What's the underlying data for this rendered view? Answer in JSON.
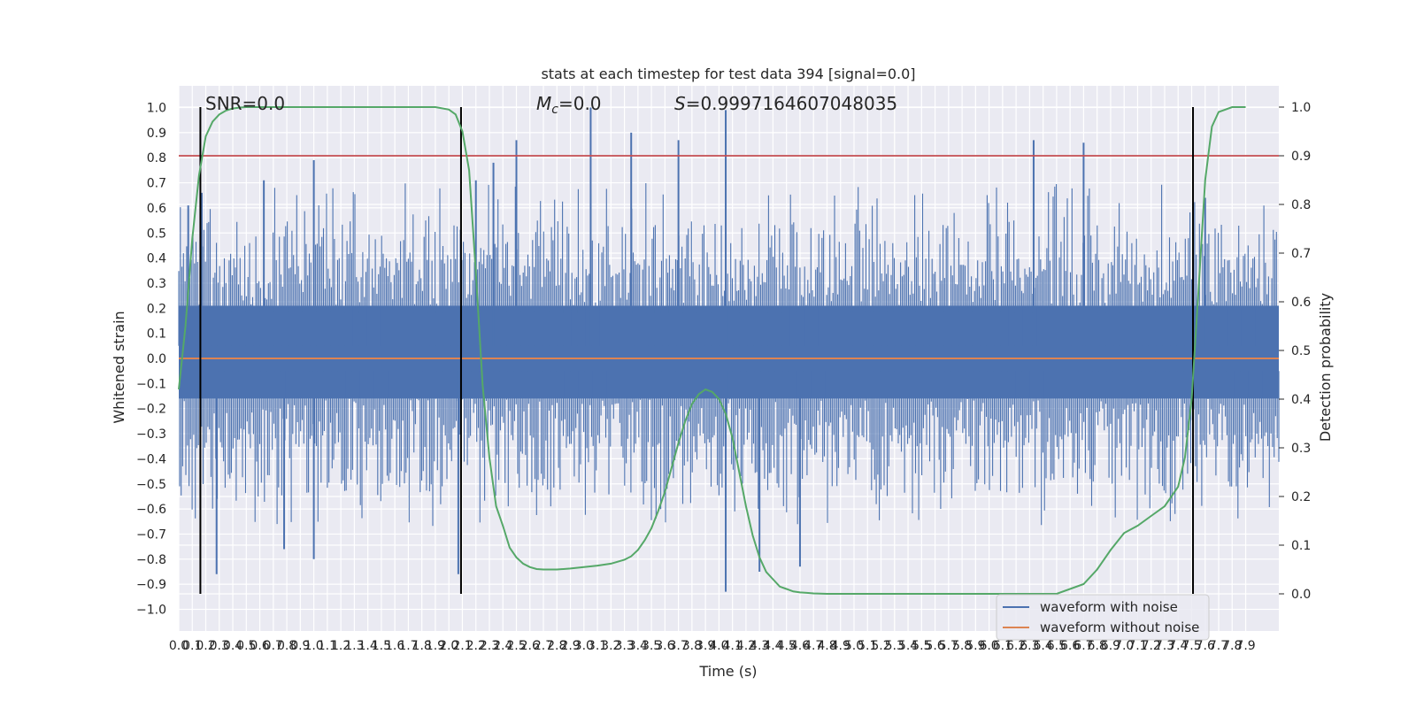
{
  "chart_data": {
    "type": "line",
    "title": "stats at each timestep for test data 394 [signal=0.0]",
    "xlabel": "Time (s)",
    "ylabel": "Whitened strain",
    "y2label": "Detection probability",
    "xlim": [
      0.0,
      7.95
    ],
    "ylim": [
      -1.05,
      1.05
    ],
    "y2lim": [
      -0.05,
      1.05
    ],
    "x_ticks": [
      0.0,
      0.1,
      0.2,
      0.3,
      0.4,
      0.5,
      0.6,
      0.7,
      0.8,
      0.9,
      1.0,
      1.1,
      1.2,
      1.3,
      1.4,
      1.5,
      1.6,
      1.7,
      1.8,
      1.9,
      2.0,
      2.1,
      2.2,
      2.3,
      2.4,
      2.5,
      2.6,
      2.7,
      2.8,
      2.9,
      3.0,
      3.1,
      3.2,
      3.3,
      3.4,
      3.5,
      3.6,
      3.7,
      3.8,
      3.9,
      4.0,
      4.1,
      4.2,
      4.3,
      4.4,
      4.5,
      4.6,
      4.7,
      4.8,
      4.9,
      5.0,
      5.1,
      5.2,
      5.3,
      5.4,
      5.5,
      5.6,
      5.7,
      5.8,
      5.9,
      6.0,
      6.1,
      6.2,
      6.3,
      6.4,
      6.5,
      6.6,
      6.7,
      6.8,
      6.9,
      7.0,
      7.1,
      7.2,
      7.3,
      7.4,
      7.5,
      7.6,
      7.7,
      7.8,
      7.9
    ],
    "y_ticks": [
      -1.0,
      -0.9,
      -0.8,
      -0.7,
      -0.6,
      -0.5,
      -0.4,
      -0.3,
      -0.2,
      -0.1,
      0.0,
      0.1,
      0.2,
      0.3,
      0.4,
      0.5,
      0.6,
      0.7,
      0.8,
      0.9,
      1.0
    ],
    "y2_ticks": [
      0.0,
      0.1,
      0.2,
      0.3,
      0.4,
      0.5,
      0.6,
      0.7,
      0.8,
      0.9,
      1.0
    ],
    "grid": true,
    "legend_position": "bottom-right",
    "annotations": {
      "snr": "SNR=0.0",
      "mc_symbol": "M",
      "mc_sub": "c",
      "mc_value": "=0.0",
      "s_symbol": "S",
      "s_value": "=0.9997164607048035"
    },
    "series": [
      {
        "name": "waveform with noise",
        "color": "#4c72b0",
        "description_range": [
          -0.93,
          1.0
        ],
        "peaks": [
          {
            "x": 0.07,
            "y": 0.61
          },
          {
            "x": 0.17,
            "y": 0.66
          },
          {
            "x": 0.28,
            "y": -0.86
          },
          {
            "x": 0.63,
            "y": 0.71
          },
          {
            "x": 0.78,
            "y": -0.76
          },
          {
            "x": 1.0,
            "y": 0.79
          },
          {
            "x": 1.0,
            "y": -0.8
          },
          {
            "x": 2.07,
            "y": -0.86
          },
          {
            "x": 2.2,
            "y": 0.71
          },
          {
            "x": 2.33,
            "y": 0.78
          },
          {
            "x": 2.5,
            "y": 0.87
          },
          {
            "x": 3.05,
            "y": 1.0
          },
          {
            "x": 3.35,
            "y": 0.9
          },
          {
            "x": 3.7,
            "y": 0.87
          },
          {
            "x": 4.05,
            "y": 0.99
          },
          {
            "x": 4.05,
            "y": -0.93
          },
          {
            "x": 4.3,
            "y": -0.85
          },
          {
            "x": 4.6,
            "y": -0.83
          },
          {
            "x": 6.33,
            "y": 0.87
          },
          {
            "x": 6.7,
            "y": 0.86
          },
          {
            "x": 7.6,
            "y": 0.64
          }
        ]
      },
      {
        "name": "waveform without noise",
        "color": "#dd8452",
        "y": 0.0
      },
      {
        "name": "detection probability",
        "axis": "right",
        "color": "#55a868",
        "x": [
          0.0,
          0.05,
          0.1,
          0.15,
          0.2,
          0.25,
          0.3,
          0.35,
          0.4,
          0.45,
          0.5,
          0.6,
          0.8,
          1.0,
          1.5,
          1.9,
          2.0,
          2.05,
          2.1,
          2.15,
          2.2,
          2.25,
          2.3,
          2.35,
          2.4,
          2.45,
          2.5,
          2.55,
          2.6,
          2.65,
          2.7,
          2.8,
          2.9,
          3.0,
          3.1,
          3.2,
          3.3,
          3.35,
          3.4,
          3.45,
          3.5,
          3.55,
          3.6,
          3.65,
          3.7,
          3.75,
          3.8,
          3.85,
          3.9,
          3.95,
          4.0,
          4.05,
          4.1,
          4.15,
          4.2,
          4.25,
          4.3,
          4.35,
          4.4,
          4.45,
          4.5,
          4.55,
          4.6,
          4.65,
          4.7,
          4.8,
          4.9,
          5.0,
          5.5,
          6.0,
          6.5,
          6.7,
          6.8,
          6.9,
          7.0,
          7.1,
          7.2,
          7.3,
          7.35,
          7.4,
          7.45,
          7.5,
          7.55,
          7.6,
          7.65,
          7.7,
          7.8,
          7.9
        ],
        "y": [
          0.42,
          0.55,
          0.73,
          0.86,
          0.94,
          0.97,
          0.985,
          0.993,
          0.997,
          0.999,
          1.0,
          1.0,
          1.0,
          1.0,
          1.0,
          1.0,
          0.995,
          0.985,
          0.95,
          0.87,
          0.66,
          0.43,
          0.28,
          0.18,
          0.14,
          0.095,
          0.075,
          0.062,
          0.055,
          0.051,
          0.05,
          0.05,
          0.052,
          0.055,
          0.058,
          0.062,
          0.07,
          0.077,
          0.09,
          0.11,
          0.135,
          0.17,
          0.21,
          0.26,
          0.31,
          0.355,
          0.39,
          0.41,
          0.42,
          0.415,
          0.4,
          0.37,
          0.32,
          0.25,
          0.18,
          0.12,
          0.075,
          0.045,
          0.03,
          0.015,
          0.01,
          0.005,
          0.003,
          0.002,
          0.001,
          0.0,
          0.0,
          0.0,
          0.0,
          0.0,
          0.0,
          0.02,
          0.05,
          0.09,
          0.125,
          0.14,
          0.16,
          0.18,
          0.2,
          0.22,
          0.28,
          0.4,
          0.62,
          0.85,
          0.96,
          0.99,
          1.0,
          1.0
        ]
      }
    ],
    "horizontal_lines": [
      {
        "y2": 0.9,
        "color": "#c44e52"
      }
    ],
    "vertical_lines": [
      0.16,
      2.09,
      7.51
    ]
  },
  "legend": {
    "item1": "waveform with noise",
    "item2": "waveform without noise"
  }
}
